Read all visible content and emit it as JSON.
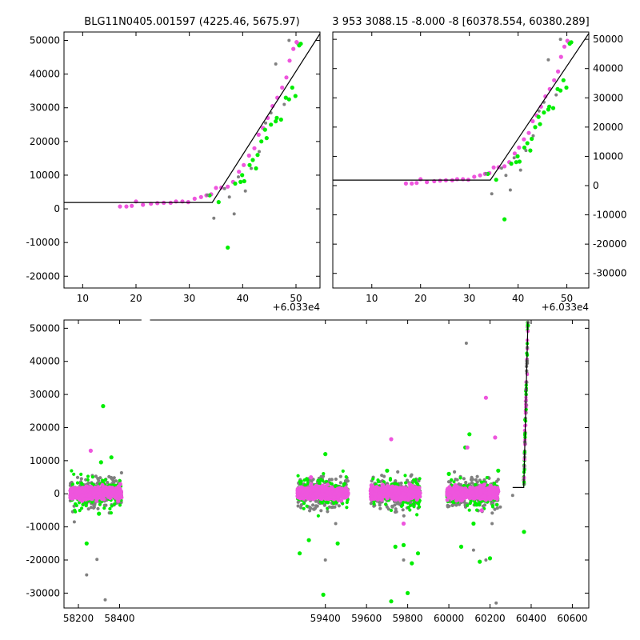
{
  "chart_data": [
    {
      "id": "top-left",
      "type": "scatter",
      "title": "BLG11N0405.001597 (4225.46, 5675.97)",
      "x_offset_label": "+6.033e4",
      "xlim": [
        6.5,
        54.5
      ],
      "ylim": [
        -23500,
        52500
      ],
      "x_ticks": [
        10,
        20,
        30,
        40,
        50
      ],
      "y_ticks": [
        -20000,
        -10000,
        0,
        10000,
        20000,
        30000,
        40000,
        50000
      ],
      "y_tick_side": "left",
      "model": [
        [
          6.5,
          1900
        ],
        [
          34.3,
          1900
        ],
        [
          54.5,
          52000
        ]
      ],
      "series": [
        {
          "color": "#ee55dd",
          "points": [
            [
              17,
              700
            ],
            [
              18.2,
              700
            ],
            [
              19.2,
              900
            ],
            [
              20,
              2200
            ],
            [
              21.3,
              1200
            ],
            [
              22.8,
              1500
            ],
            [
              24,
              1700
            ],
            [
              25.2,
              1800
            ],
            [
              26.5,
              1800
            ],
            [
              27.5,
              2200
            ],
            [
              28.7,
              2200
            ],
            [
              29.8,
              2000
            ],
            [
              31,
              3000
            ],
            [
              32.2,
              3500
            ],
            [
              33.2,
              4000
            ],
            [
              34.1,
              4300
            ],
            [
              35,
              6200
            ],
            [
              36,
              6300
            ],
            [
              37.2,
              6600
            ],
            [
              38.2,
              8000
            ],
            [
              39.3,
              11000
            ],
            [
              40.2,
              13000
            ],
            [
              41.2,
              15800
            ],
            [
              42.2,
              18000
            ],
            [
              43,
              22000
            ],
            [
              43.8,
              24000
            ],
            [
              44.7,
              27000
            ],
            [
              45.6,
              30500
            ],
            [
              46.5,
              33000
            ],
            [
              47.4,
              36000
            ],
            [
              48.2,
              39000
            ],
            [
              48.8,
              44000
            ],
            [
              49.5,
              47500
            ],
            [
              50.1,
              49500
            ],
            [
              50.4,
              49000
            ]
          ]
        },
        {
          "color": "#00ee00",
          "points": [
            [
              33.8,
              4000
            ],
            [
              35.5,
              2000
            ],
            [
              37.2,
              -11500
            ],
            [
              38.6,
              7500
            ],
            [
              39.6,
              8000
            ],
            [
              40.3,
              8200
            ],
            [
              41.3,
              13000
            ],
            [
              41.9,
              14500
            ],
            [
              42.8,
              16000
            ],
            [
              43.5,
              20000
            ],
            [
              44.5,
              21000
            ],
            [
              45.3,
              25000
            ],
            [
              46.2,
              26000
            ],
            [
              47.2,
              26500
            ],
            [
              48.1,
              33000
            ],
            [
              48.7,
              32500
            ],
            [
              49.3,
              36000
            ],
            [
              49.9,
              33500
            ],
            [
              50.6,
              48500
            ],
            [
              50.9,
              49000
            ],
            [
              46.4,
              27000
            ],
            [
              44.2,
              23500
            ],
            [
              42.5,
              12000
            ],
            [
              39.9,
              10000
            ]
          ]
        },
        {
          "color": "#808080",
          "points": [
            [
              34.6,
              -2800
            ],
            [
              36.6,
              6000
            ],
            [
              37.5,
              3500
            ],
            [
              38.4,
              -1500
            ],
            [
              40.5,
              5300
            ],
            [
              41.6,
              12000
            ],
            [
              43.1,
              17000
            ],
            [
              44.3,
              25500
            ],
            [
              45.3,
              28500
            ],
            [
              46.2,
              43000
            ],
            [
              47.8,
              31000
            ],
            [
              48.7,
              50000
            ],
            [
              33.4,
              4100
            ],
            [
              39.2,
              9500
            ]
          ]
        }
      ]
    },
    {
      "id": "top-right",
      "type": "scatter",
      "title": "3 953 3088.15 -8.000 -8 [60378.554, 60380.289]",
      "x_offset_label": "+6.033e4",
      "xlim": [
        2,
        54.5
      ],
      "ylim": [
        -35000,
        52500
      ],
      "x_ticks": [
        10,
        20,
        30,
        40,
        50
      ],
      "y_ticks": [
        -30000,
        -20000,
        -10000,
        0,
        10000,
        20000,
        30000,
        40000,
        50000
      ],
      "y_tick_side": "right",
      "model": [
        [
          2,
          1900
        ],
        [
          34.3,
          1900
        ],
        [
          54.5,
          52000
        ]
      ],
      "series": [
        {
          "color": "#ee55dd",
          "points": [
            [
              17,
              700
            ],
            [
              18.2,
              700
            ],
            [
              19.2,
              900
            ],
            [
              20,
              2200
            ],
            [
              21.3,
              1200
            ],
            [
              22.8,
              1500
            ],
            [
              24,
              1700
            ],
            [
              25.2,
              1800
            ],
            [
              26.5,
              1800
            ],
            [
              27.5,
              2200
            ],
            [
              28.7,
              2200
            ],
            [
              29.8,
              2000
            ],
            [
              31,
              3000
            ],
            [
              32.2,
              3500
            ],
            [
              33.2,
              4000
            ],
            [
              34.1,
              4300
            ],
            [
              35,
              6200
            ],
            [
              36,
              6300
            ],
            [
              37.2,
              6600
            ],
            [
              38.2,
              8000
            ],
            [
              39.3,
              11000
            ],
            [
              40.2,
              13000
            ],
            [
              41.2,
              15800
            ],
            [
              42.2,
              18000
            ],
            [
              43,
              22000
            ],
            [
              43.8,
              24000
            ],
            [
              44.7,
              27000
            ],
            [
              45.6,
              30500
            ],
            [
              46.5,
              33000
            ],
            [
              47.4,
              36000
            ],
            [
              48.2,
              39000
            ],
            [
              48.8,
              44000
            ],
            [
              49.5,
              47500
            ],
            [
              50.1,
              49500
            ],
            [
              50.4,
              49000
            ]
          ]
        },
        {
          "color": "#00ee00",
          "points": [
            [
              33.8,
              4000
            ],
            [
              35.5,
              2000
            ],
            [
              37.2,
              -11500
            ],
            [
              38.6,
              7500
            ],
            [
              39.6,
              8000
            ],
            [
              40.3,
              8200
            ],
            [
              41.3,
              13000
            ],
            [
              41.9,
              14500
            ],
            [
              42.8,
              16000
            ],
            [
              43.5,
              20000
            ],
            [
              44.5,
              21000
            ],
            [
              45.3,
              25000
            ],
            [
              46.2,
              26000
            ],
            [
              47.2,
              26500
            ],
            [
              48.1,
              33000
            ],
            [
              48.7,
              32500
            ],
            [
              49.3,
              36000
            ],
            [
              49.9,
              33500
            ],
            [
              50.6,
              48500
            ],
            [
              50.9,
              49000
            ],
            [
              46.4,
              27000
            ],
            [
              44.2,
              23500
            ],
            [
              42.5,
              12000
            ],
            [
              39.9,
              10000
            ]
          ]
        },
        {
          "color": "#808080",
          "points": [
            [
              34.6,
              -2800
            ],
            [
              36.6,
              6000
            ],
            [
              37.5,
              3500
            ],
            [
              38.4,
              -1500
            ],
            [
              40.5,
              5300
            ],
            [
              41.6,
              12000
            ],
            [
              43.1,
              17000
            ],
            [
              44.3,
              25500
            ],
            [
              45.3,
              28500
            ],
            [
              46.2,
              43000
            ],
            [
              47.8,
              31000
            ],
            [
              48.7,
              50000
            ],
            [
              33.4,
              4100
            ],
            [
              39.2,
              9500
            ]
          ]
        }
      ]
    },
    {
      "id": "bottom",
      "type": "scatter",
      "title": "",
      "xlim": [
        58130,
        60680
      ],
      "ylim": [
        -34500,
        52500
      ],
      "x_ticks": [
        58200,
        58400,
        59400,
        59600,
        59800,
        60000,
        60200,
        60400,
        60600
      ],
      "y_ticks": [
        -30000,
        -20000,
        -10000,
        0,
        10000,
        20000,
        30000,
        40000,
        50000
      ],
      "y_tick_side": "left",
      "axis_break_range": [
        58440,
        59270
      ],
      "model": [
        [
          60310,
          1900
        ],
        [
          60364,
          1900
        ],
        [
          60384,
          52000
        ]
      ],
      "seasons": [
        [
          58160,
          58410
        ],
        [
          59265,
          59510
        ],
        [
          59620,
          59860
        ],
        [
          59990,
          60240
        ]
      ],
      "series": [
        {
          "color": "#808080",
          "points": [
            [
              58180,
              -8500
            ],
            [
              58240,
              -24500
            ],
            [
              58290,
              -19800
            ],
            [
              58330,
              -32000
            ],
            [
              59400,
              -20000
            ],
            [
              59420,
              -4000
            ],
            [
              59450,
              -9000
            ],
            [
              59700,
              -4000
            ],
            [
              59780,
              -20000
            ],
            [
              60085,
              45500
            ],
            [
              60120,
              -17000
            ],
            [
              60180,
              -20000
            ],
            [
              60230,
              -33000
            ],
            [
              60210,
              -9000
            ],
            [
              60310,
              -500
            ],
            [
              60250,
              -4000
            ]
          ]
        },
        {
          "color": "#00ee00",
          "points": [
            [
              58240,
              -15000
            ],
            [
              58320,
              26500
            ],
            [
              58310,
              9500
            ],
            [
              58360,
              11000
            ],
            [
              58300,
              -6000
            ],
            [
              59400,
              12000
            ],
            [
              59390,
              -30500
            ],
            [
              59320,
              -14000
            ],
            [
              59275,
              -18000
            ],
            [
              59460,
              -15000
            ],
            [
              59720,
              -32500
            ],
            [
              59740,
              -16000
            ],
            [
              59780,
              -15500
            ],
            [
              59800,
              -30000
            ],
            [
              59850,
              -18000
            ],
            [
              59820,
              -21000
            ],
            [
              59700,
              7000
            ],
            [
              60080,
              14000
            ],
            [
              60100,
              18000
            ],
            [
              60150,
              -20500
            ],
            [
              60200,
              -19500
            ],
            [
              60060,
              -16000
            ],
            [
              60120,
              -9000
            ],
            [
              60365,
              -11500
            ],
            [
              60240,
              7000
            ],
            [
              60000,
              6000
            ]
          ]
        },
        {
          "color": "#ee55dd",
          "points": [
            [
              58260,
              13000
            ],
            [
              59330,
              5000
            ],
            [
              59720,
              16500
            ],
            [
              60090,
              14000
            ],
            [
              60180,
              29000
            ],
            [
              60225,
              17000
            ],
            [
              59780,
              -9000
            ],
            [
              60160,
              -5000
            ]
          ]
        }
      ]
    }
  ]
}
